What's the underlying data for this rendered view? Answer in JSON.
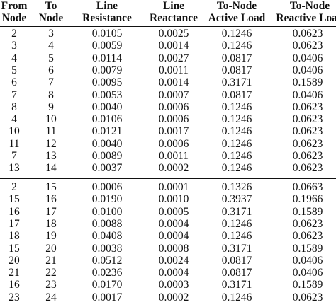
{
  "headers": [
    [
      "From",
      "Node"
    ],
    [
      "To",
      "Node"
    ],
    [
      "Line",
      "Resistance"
    ],
    [
      "Line",
      "Reactance"
    ],
    [
      "To-Node",
      "Active Load"
    ],
    [
      "To-Node",
      "Reactive Load"
    ]
  ],
  "group1": [
    [
      "2",
      "3",
      "0.0105",
      "0.0025",
      "0.1246",
      "0.0623"
    ],
    [
      "3",
      "4",
      "0.0059",
      "0.0014",
      "0.1246",
      "0.0623"
    ],
    [
      "4",
      "5",
      "0.0114",
      "0.0027",
      "0.0817",
      "0.0406"
    ],
    [
      "5",
      "6",
      "0.0079",
      "0.0011",
      "0.0817",
      "0.0406"
    ],
    [
      "6",
      "7",
      "0.0095",
      "0.0014",
      "0.3171",
      "0.1589"
    ],
    [
      "7",
      "8",
      "0.0053",
      "0.0007",
      "0.0817",
      "0.0406"
    ],
    [
      "8",
      "9",
      "0.0040",
      "0.0006",
      "0.1246",
      "0.0623"
    ],
    [
      "4",
      "10",
      "0.0106",
      "0.0006",
      "0.1246",
      "0.0623"
    ],
    [
      "10",
      "11",
      "0.0121",
      "0.0017",
      "0.1246",
      "0.0623"
    ],
    [
      "11",
      "12",
      "0.0040",
      "0.0006",
      "0.1246",
      "0.0623"
    ],
    [
      "7",
      "13",
      "0.0089",
      "0.0011",
      "0.1246",
      "0.0623"
    ],
    [
      "13",
      "14",
      "0.0037",
      "0.0002",
      "0.1246",
      "0.0623"
    ]
  ],
  "group2": [
    [
      "2",
      "15",
      "0.0006",
      "0.0001",
      "0.1326",
      "0.0663"
    ],
    [
      "15",
      "16",
      "0.0190",
      "0.0010",
      "0.3937",
      "0.1966"
    ],
    [
      "16",
      "17",
      "0.0100",
      "0.0005",
      "0.3171",
      "0.1589"
    ],
    [
      "17",
      "18",
      "0.0088",
      "0.0004",
      "0.1246",
      "0.0623"
    ],
    [
      "18",
      "19",
      "0.0408",
      "0.0004",
      "0.1246",
      "0.0623"
    ],
    [
      "15",
      "20",
      "0.0038",
      "0.0008",
      "0.3171",
      "0.1589"
    ],
    [
      "20",
      "21",
      "0.0512",
      "0.0024",
      "0.0817",
      "0.0406"
    ],
    [
      "21",
      "22",
      "0.0236",
      "0.0004",
      "0.0817",
      "0.0406"
    ],
    [
      "16",
      "23",
      "0.0170",
      "0.0003",
      "0.3171",
      "0.1589"
    ],
    [
      "23",
      "24",
      "0.0017",
      "0.0002",
      "0.1246",
      "0.0623"
    ]
  ]
}
